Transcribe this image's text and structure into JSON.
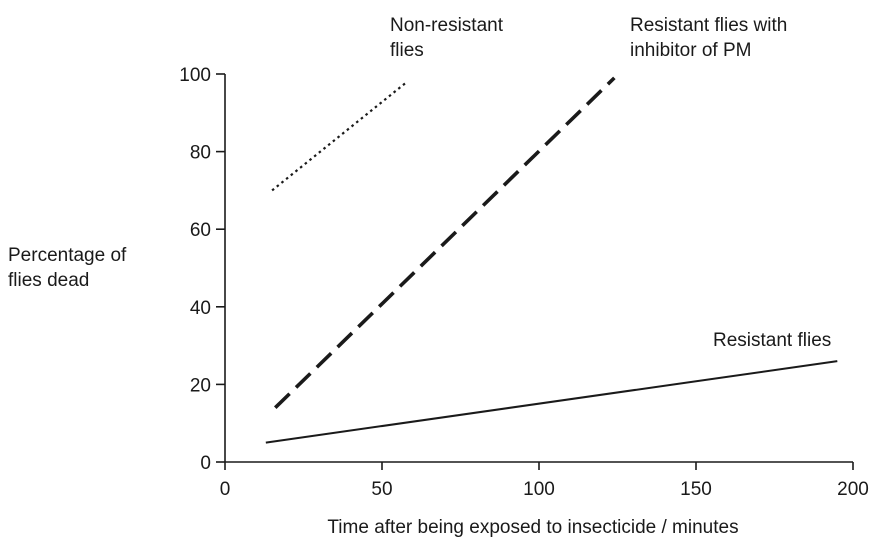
{
  "chart_data": {
    "type": "line",
    "xlabel": "Time after being exposed to insecticide / minutes",
    "ylabel": [
      "Percentage of",
      "flies dead"
    ],
    "xlim": [
      0,
      200
    ],
    "ylim": [
      0,
      100
    ],
    "xticks": [
      0,
      50,
      100,
      150,
      200
    ],
    "yticks": [
      0,
      20,
      40,
      60,
      80,
      100
    ],
    "grid": false,
    "series": [
      {
        "name": [
          "Non-resistant",
          "flies"
        ],
        "style": "dotted",
        "color": "#1a1a1a",
        "points": [
          {
            "x": 15,
            "y": 70
          },
          {
            "x": 58,
            "y": 98
          }
        ]
      },
      {
        "name": [
          "Resistant flies with",
          "inhibitor of PM"
        ],
        "style": "dashed",
        "color": "#1a1a1a",
        "points": [
          {
            "x": 16,
            "y": 14
          },
          {
            "x": 124,
            "y": 99
          }
        ]
      },
      {
        "name": [
          "Resistant flies"
        ],
        "style": "solid",
        "color": "#1a1a1a",
        "points": [
          {
            "x": 13,
            "y": 5
          },
          {
            "x": 195,
            "y": 26
          }
        ]
      }
    ]
  }
}
